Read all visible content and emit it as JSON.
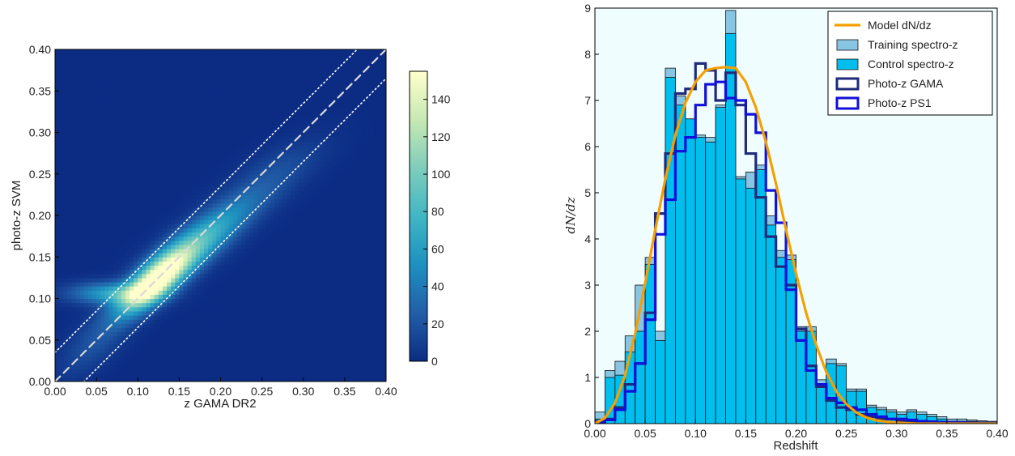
{
  "chart_data": [
    {
      "type": "heatmap",
      "title": "",
      "xlabel": "z GAMA DR2",
      "ylabel": "photo-z SVM",
      "xlim": [
        0.0,
        0.4
      ],
      "ylim": [
        0.0,
        0.4
      ],
      "x_ticks": [
        "0.00",
        "0.05",
        "0.10",
        "0.15",
        "0.20",
        "0.25",
        "0.30",
        "0.35",
        "0.40"
      ],
      "y_ticks": [
        "0.00",
        "0.05",
        "0.10",
        "0.15",
        "0.20",
        "0.25",
        "0.30",
        "0.35",
        "0.40"
      ],
      "colorbar": {
        "min": 0,
        "max": 155,
        "ticks": [
          "0",
          "20",
          "40",
          "60",
          "80",
          "100",
          "120",
          "140"
        ],
        "tick_values": [
          0,
          20,
          40,
          60,
          80,
          100,
          120,
          140
        ],
        "colors": [
          "#0c2c84",
          "#225ea8",
          "#1d91c0",
          "#41b6c4",
          "#7fcdbb",
          "#c7e9b4",
          "#ffffcc"
        ]
      },
      "reference_lines": [
        {
          "style": "dashed",
          "intercept": 0.0,
          "slope": 1.0,
          "color": "#d9d9d9"
        },
        {
          "style": "dotted",
          "intercept": 0.035,
          "slope": 1.0,
          "color": "#ffffff"
        },
        {
          "style": "dotted",
          "intercept": -0.035,
          "slope": 1.0,
          "color": "#ffffff"
        }
      ],
      "density_features": [
        {
          "x": 0.12,
          "y": 0.12,
          "sx": 0.028,
          "sy": 0.025,
          "corr": 0.75,
          "amp": 150
        },
        {
          "x": 0.16,
          "y": 0.155,
          "sx": 0.04,
          "sy": 0.032,
          "corr": 0.8,
          "amp": 70
        },
        {
          "x": 0.07,
          "y": 0.107,
          "sx": 0.035,
          "sy": 0.009,
          "corr": 0.0,
          "amp": 62
        },
        {
          "x": 0.21,
          "y": 0.2,
          "sx": 0.05,
          "sy": 0.035,
          "corr": 0.85,
          "amp": 30
        },
        {
          "x": 0.05,
          "y": 0.05,
          "sx": 0.03,
          "sy": 0.03,
          "corr": 0.7,
          "amp": 20
        },
        {
          "x": 0.27,
          "y": 0.26,
          "sx": 0.04,
          "sy": 0.025,
          "corr": 0.7,
          "amp": 12
        }
      ]
    },
    {
      "type": "bar",
      "title": "",
      "xlabel": "Redshift",
      "ylabel": "dN/dz",
      "xlim": [
        0.0,
        0.4
      ],
      "ylim": [
        0,
        9
      ],
      "x_ticks": [
        "0.00",
        "0.05",
        "0.10",
        "0.15",
        "0.20",
        "0.25",
        "0.30",
        "0.35",
        "0.40"
      ],
      "y_ticks": [
        "0",
        "1",
        "2",
        "3",
        "4",
        "5",
        "6",
        "7",
        "8",
        "9"
      ],
      "bin_width": 0.01,
      "bin_starts": [
        0.0,
        0.01,
        0.02,
        0.03,
        0.04,
        0.05,
        0.06,
        0.07,
        0.08,
        0.09,
        0.1,
        0.11,
        0.12,
        0.13,
        0.14,
        0.15,
        0.16,
        0.17,
        0.18,
        0.19,
        0.2,
        0.21,
        0.22,
        0.23,
        0.24,
        0.25,
        0.26,
        0.27,
        0.28,
        0.29,
        0.3,
        0.31,
        0.32,
        0.33,
        0.34,
        0.35,
        0.36,
        0.37,
        0.38,
        0.39
      ],
      "legend_position": "top-right",
      "background": "#f0fdff",
      "series": [
        {
          "name": "Training spectro-z",
          "kind": "bar",
          "color": "#87c5e3",
          "values": [
            0.25,
            1.15,
            1.35,
            1.9,
            3.0,
            3.6,
            2.0,
            7.7,
            7.1,
            6.6,
            6.25,
            6.2,
            6.9,
            8.95,
            5.35,
            5.45,
            5.6,
            4.5,
            3.75,
            3.65,
            2.1,
            2.1,
            0.95,
            1.4,
            1.3,
            0.75,
            0.75,
            0.4,
            0.35,
            0.3,
            0.25,
            0.3,
            0.25,
            0.2,
            0.15,
            0.1,
            0.1,
            0.08,
            0.06,
            0.05
          ]
        },
        {
          "name": "Control spectro-z",
          "kind": "bar",
          "color": "#00bfef",
          "values": [
            0.1,
            1.0,
            1.05,
            1.55,
            2.0,
            3.45,
            1.8,
            7.5,
            6.9,
            6.6,
            6.2,
            6.1,
            6.85,
            8.45,
            5.3,
            5.1,
            5.5,
            4.3,
            3.6,
            3.55,
            2.0,
            2.0,
            0.85,
            1.3,
            1.25,
            0.7,
            0.7,
            0.35,
            0.3,
            0.25,
            0.2,
            0.25,
            0.2,
            0.15,
            0.1,
            0.05,
            0.05,
            0.05,
            0.04,
            0.03
          ]
        },
        {
          "name": "Photo-z GAMA",
          "kind": "step",
          "color": "#1f2a7a",
          "values": [
            0.05,
            0.1,
            0.35,
            0.85,
            1.3,
            2.4,
            4.55,
            5.85,
            7.15,
            7.25,
            7.8,
            7.65,
            7.0,
            7.6,
            6.9,
            5.85,
            4.9,
            4.05,
            3.4,
            3.0,
            2.05,
            1.25,
            0.8,
            0.5,
            0.35,
            0.3,
            0.2,
            0.15,
            0.1,
            0.1,
            0.05,
            0.05,
            0.05,
            0.04,
            0.03,
            0.03,
            0.02,
            0.02,
            0.01,
            0.01
          ]
        },
        {
          "name": "Photo-z PS1",
          "kind": "step",
          "color": "#1010d8",
          "values": [
            0.02,
            0.08,
            0.3,
            0.7,
            1.3,
            2.25,
            4.1,
            4.85,
            5.9,
            6.2,
            6.9,
            7.35,
            7.4,
            7.05,
            7.0,
            6.7,
            6.3,
            5.05,
            4.35,
            2.9,
            1.8,
            1.15,
            0.85,
            0.55,
            0.45,
            0.35,
            0.3,
            0.2,
            0.15,
            0.1,
            0.1,
            0.08,
            0.05,
            0.04,
            0.03,
            0.02,
            0.02,
            0.01,
            0.01,
            0.01
          ]
        },
        {
          "name": "Model dN/dz",
          "kind": "line",
          "color": "#f5a000",
          "x": [
            0.0,
            0.01,
            0.02,
            0.03,
            0.04,
            0.05,
            0.06,
            0.07,
            0.08,
            0.09,
            0.1,
            0.11,
            0.12,
            0.13,
            0.14,
            0.15,
            0.16,
            0.17,
            0.18,
            0.19,
            0.2,
            0.21,
            0.22,
            0.23,
            0.24,
            0.25,
            0.26,
            0.27,
            0.28,
            0.29,
            0.3,
            0.31,
            0.32,
            0.35,
            0.4
          ],
          "y": [
            0.0,
            0.12,
            0.45,
            1.05,
            1.95,
            3.05,
            4.2,
            5.3,
            6.25,
            6.95,
            7.4,
            7.65,
            7.7,
            7.72,
            7.7,
            7.4,
            6.85,
            6.1,
            5.2,
            4.2,
            3.25,
            2.4,
            1.7,
            1.12,
            0.7,
            0.42,
            0.24,
            0.13,
            0.07,
            0.04,
            0.02,
            0.01,
            0.0,
            0.0,
            0.0
          ]
        }
      ],
      "legend_order": [
        "Model dN/dz",
        "Training spectro-z",
        "Control spectro-z",
        "Photo-z GAMA",
        "Photo-z PS1"
      ]
    }
  ]
}
